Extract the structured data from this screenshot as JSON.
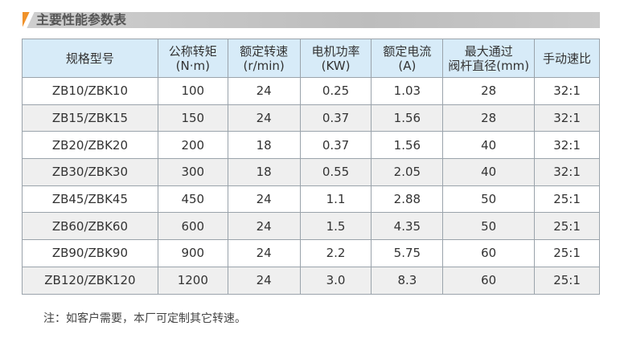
{
  "title": "主要性能参数表",
  "colors": {
    "accent": "#f0922a",
    "header_bg": "#d7ebf8",
    "alt_row": "#efefef"
  },
  "headers": [
    [
      "规格型号",
      ""
    ],
    [
      "公称转矩",
      "(N·m)"
    ],
    [
      "额定转速",
      "(r/min)"
    ],
    [
      "电机功率",
      "(KW)"
    ],
    [
      "额定电流",
      "(A)"
    ],
    [
      "最大通过",
      "阀杆直径(mm)"
    ],
    [
      "手动速比",
      ""
    ]
  ],
  "rows": [
    [
      "ZB10/ZBK10",
      "100",
      "24",
      "0.25",
      "1.03",
      "28",
      "32:1"
    ],
    [
      "ZB15/ZBK15",
      "150",
      "24",
      "0.37",
      "1.56",
      "28",
      "32:1"
    ],
    [
      "ZB20/ZBK20",
      "200",
      "18",
      "0.37",
      "1.56",
      "40",
      "32:1"
    ],
    [
      "ZB30/ZBK30",
      "300",
      "18",
      "0.55",
      "2.05",
      "40",
      "32:1"
    ],
    [
      "ZB45/ZBK45",
      "450",
      "24",
      "1.1",
      "2.88",
      "50",
      "25:1"
    ],
    [
      "ZB60/ZBK60",
      "600",
      "24",
      "1.5",
      "4.35",
      "50",
      "25:1"
    ],
    [
      "ZB90/ZBK90",
      "900",
      "24",
      "2.2",
      "5.75",
      "60",
      "25:1"
    ],
    [
      "ZB120/ZBK120",
      "1200",
      "24",
      "3.0",
      "8.3",
      "60",
      "25:1"
    ]
  ],
  "note": "注：如客户需要，本厂可定制其它转速。"
}
